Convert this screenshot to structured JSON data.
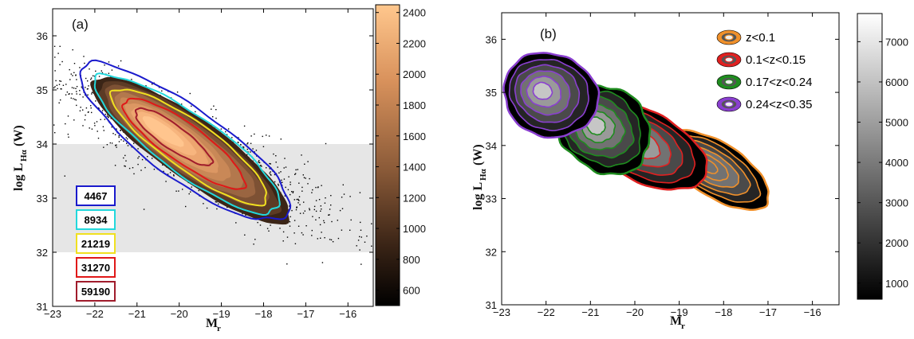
{
  "chart_data": [
    {
      "type": "heatmap",
      "panel_label": "(a)",
      "xlabel_main": "M",
      "xlabel_sub": "r",
      "ylabel_main": "log L",
      "ylabel_sub": "Hα",
      "ylabel_unit": "(W)",
      "xlim": [
        -23,
        -15.4
      ],
      "ylim": [
        31,
        36.5
      ],
      "x_ticks": [
        -23,
        -22,
        -21,
        -20,
        -19,
        -18,
        -17,
        -16
      ],
      "x_tick_labels": [
        "−23",
        "−22",
        "−21",
        "−20",
        "−19",
        "−18",
        "−17",
        "−16"
      ],
      "y_ticks": [
        31,
        32,
        33,
        34,
        35,
        36
      ],
      "y_tick_labels": [
        "31",
        "32",
        "33",
        "34",
        "35",
        "36"
      ],
      "shaded_band": [
        32,
        34
      ],
      "colorbar": {
        "range": [
          500,
          2450
        ],
        "ticks": [
          600,
          800,
          1000,
          1200,
          1400,
          1600,
          1800,
          2000,
          2200,
          2400
        ],
        "tick_labels": [
          "600",
          "800",
          "1000",
          "1200",
          "1400",
          "1600",
          "1800",
          "2000",
          "2200",
          "2400"
        ],
        "colormap": "copper"
      },
      "density_center": [
        -19.7,
        33.9
      ],
      "outline_contours": [
        {
          "label": "4467",
          "color": "#1a1acc"
        },
        {
          "label": "8934",
          "color": "#22d8dc"
        },
        {
          "label": "21219",
          "color": "#f0e020"
        },
        {
          "label": "31270",
          "color": "#e01818"
        },
        {
          "label": "59190",
          "color": "#a01c2c"
        }
      ]
    },
    {
      "type": "heatmap",
      "panel_label": "(b)",
      "xlabel_main": "M",
      "xlabel_sub": "r",
      "ylabel_main": "log L",
      "ylabel_sub": "Hα",
      "ylabel_unit": "(W)",
      "xlim": [
        -23,
        -15.4
      ],
      "ylim": [
        31,
        36.5
      ],
      "x_ticks": [
        -23,
        -22,
        -21,
        -20,
        -19,
        -18,
        -17,
        -16
      ],
      "x_tick_labels": [
        "−23",
        "−22",
        "−21",
        "−20",
        "−19",
        "−18",
        "−17",
        "−16"
      ],
      "y_ticks": [
        31,
        32,
        33,
        34,
        35,
        36
      ],
      "y_tick_labels": [
        "31",
        "32",
        "33",
        "34",
        "35",
        "36"
      ],
      "colorbar": {
        "range": [
          600,
          7700
        ],
        "ticks": [
          1000,
          2000,
          3000,
          4000,
          5000,
          6000,
          7000
        ],
        "tick_labels": [
          "1000",
          "2000",
          "3000",
          "4000",
          "5000",
          "6000",
          "7000"
        ],
        "colormap": "gray"
      },
      "series": [
        {
          "name": "z<0.1",
          "color": "#f0902a",
          "center": [
            -18.2,
            33.55
          ]
        },
        {
          "name": "0.1<z<0.15",
          "color": "#e02020",
          "center": [
            -19.8,
            34.0
          ]
        },
        {
          "name": "0.17<z<0.24",
          "color": "#1f8c1f",
          "center": [
            -20.7,
            34.3
          ]
        },
        {
          "name": "0.24<z<0.35",
          "color": "#8a3fd0",
          "center": [
            -21.9,
            34.95
          ]
        }
      ]
    }
  ]
}
